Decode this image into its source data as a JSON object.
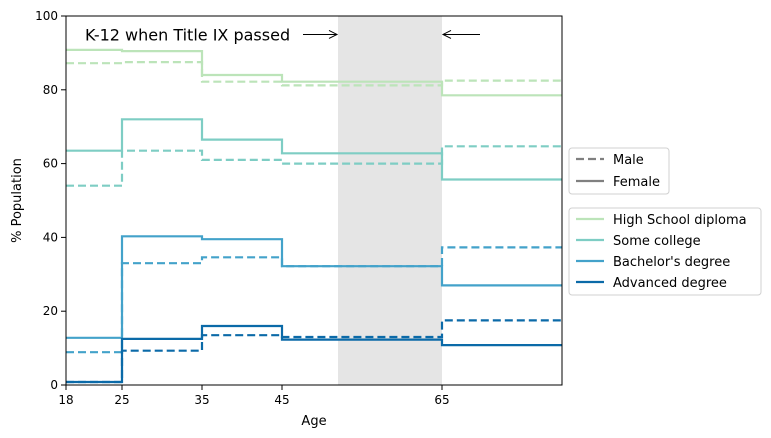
{
  "chart_data": {
    "type": "line",
    "subtype": "step",
    "xlabel": "Age",
    "ylabel": "% Population",
    "xlim": [
      18,
      80
    ],
    "ylim": [
      0,
      100
    ],
    "x_ticks": [
      18,
      25,
      35,
      45,
      65
    ],
    "y_ticks": [
      0,
      20,
      40,
      60,
      80,
      100
    ],
    "x_edges": [
      18,
      25,
      35,
      45,
      65,
      80
    ],
    "shaded_region": [
      52,
      65
    ],
    "annotation": {
      "text": "K-12 when Title IX passed",
      "arrow_left_to": 52,
      "arrow_right_to": 65,
      "y": 95
    },
    "style_legend": [
      {
        "label": "Male",
        "dash": "dashed",
        "color": "#808080"
      },
      {
        "label": "Female",
        "dash": "solid",
        "color": "#808080"
      }
    ],
    "series_legend": [
      {
        "label": "High School diploma",
        "color": "#bce4b9"
      },
      {
        "label": "Some college",
        "color": "#7ecdc4"
      },
      {
        "label": "Bachelor's degree",
        "color": "#43a2ca"
      },
      {
        "label": "Advanced degree",
        "color": "#0b6aa8"
      }
    ],
    "series": [
      {
        "name": "High School diploma",
        "sex": "Female",
        "color": "#bce4b9",
        "values": [
          90.8,
          90.5,
          84.0,
          82.2,
          78.5
        ]
      },
      {
        "name": "High School diploma",
        "sex": "Male",
        "color": "#bce4b9",
        "values": [
          87.2,
          87.5,
          82.2,
          81.2,
          82.5
        ]
      },
      {
        "name": "Some college",
        "sex": "Female",
        "color": "#7ecdc4",
        "values": [
          63.5,
          72.0,
          66.5,
          62.8,
          55.7
        ]
      },
      {
        "name": "Some college",
        "sex": "Male",
        "color": "#7ecdc4",
        "values": [
          54.0,
          63.5,
          61.0,
          60.0,
          64.7
        ]
      },
      {
        "name": "Bachelor's degree",
        "sex": "Female",
        "color": "#43a2ca",
        "values": [
          12.8,
          40.3,
          39.5,
          32.2,
          27.0
        ]
      },
      {
        "name": "Bachelor's degree",
        "sex": "Male",
        "color": "#43a2ca",
        "values": [
          8.9,
          33.0,
          34.6,
          32.2,
          37.3
        ]
      },
      {
        "name": "Advanced degree",
        "sex": "Female",
        "color": "#0b6aa8",
        "values": [
          0.8,
          12.5,
          16.0,
          12.3,
          10.8
        ]
      },
      {
        "name": "Advanced degree",
        "sex": "Male",
        "color": "#0b6aa8",
        "values": [
          0.8,
          9.3,
          13.5,
          13.0,
          17.5
        ]
      }
    ]
  }
}
